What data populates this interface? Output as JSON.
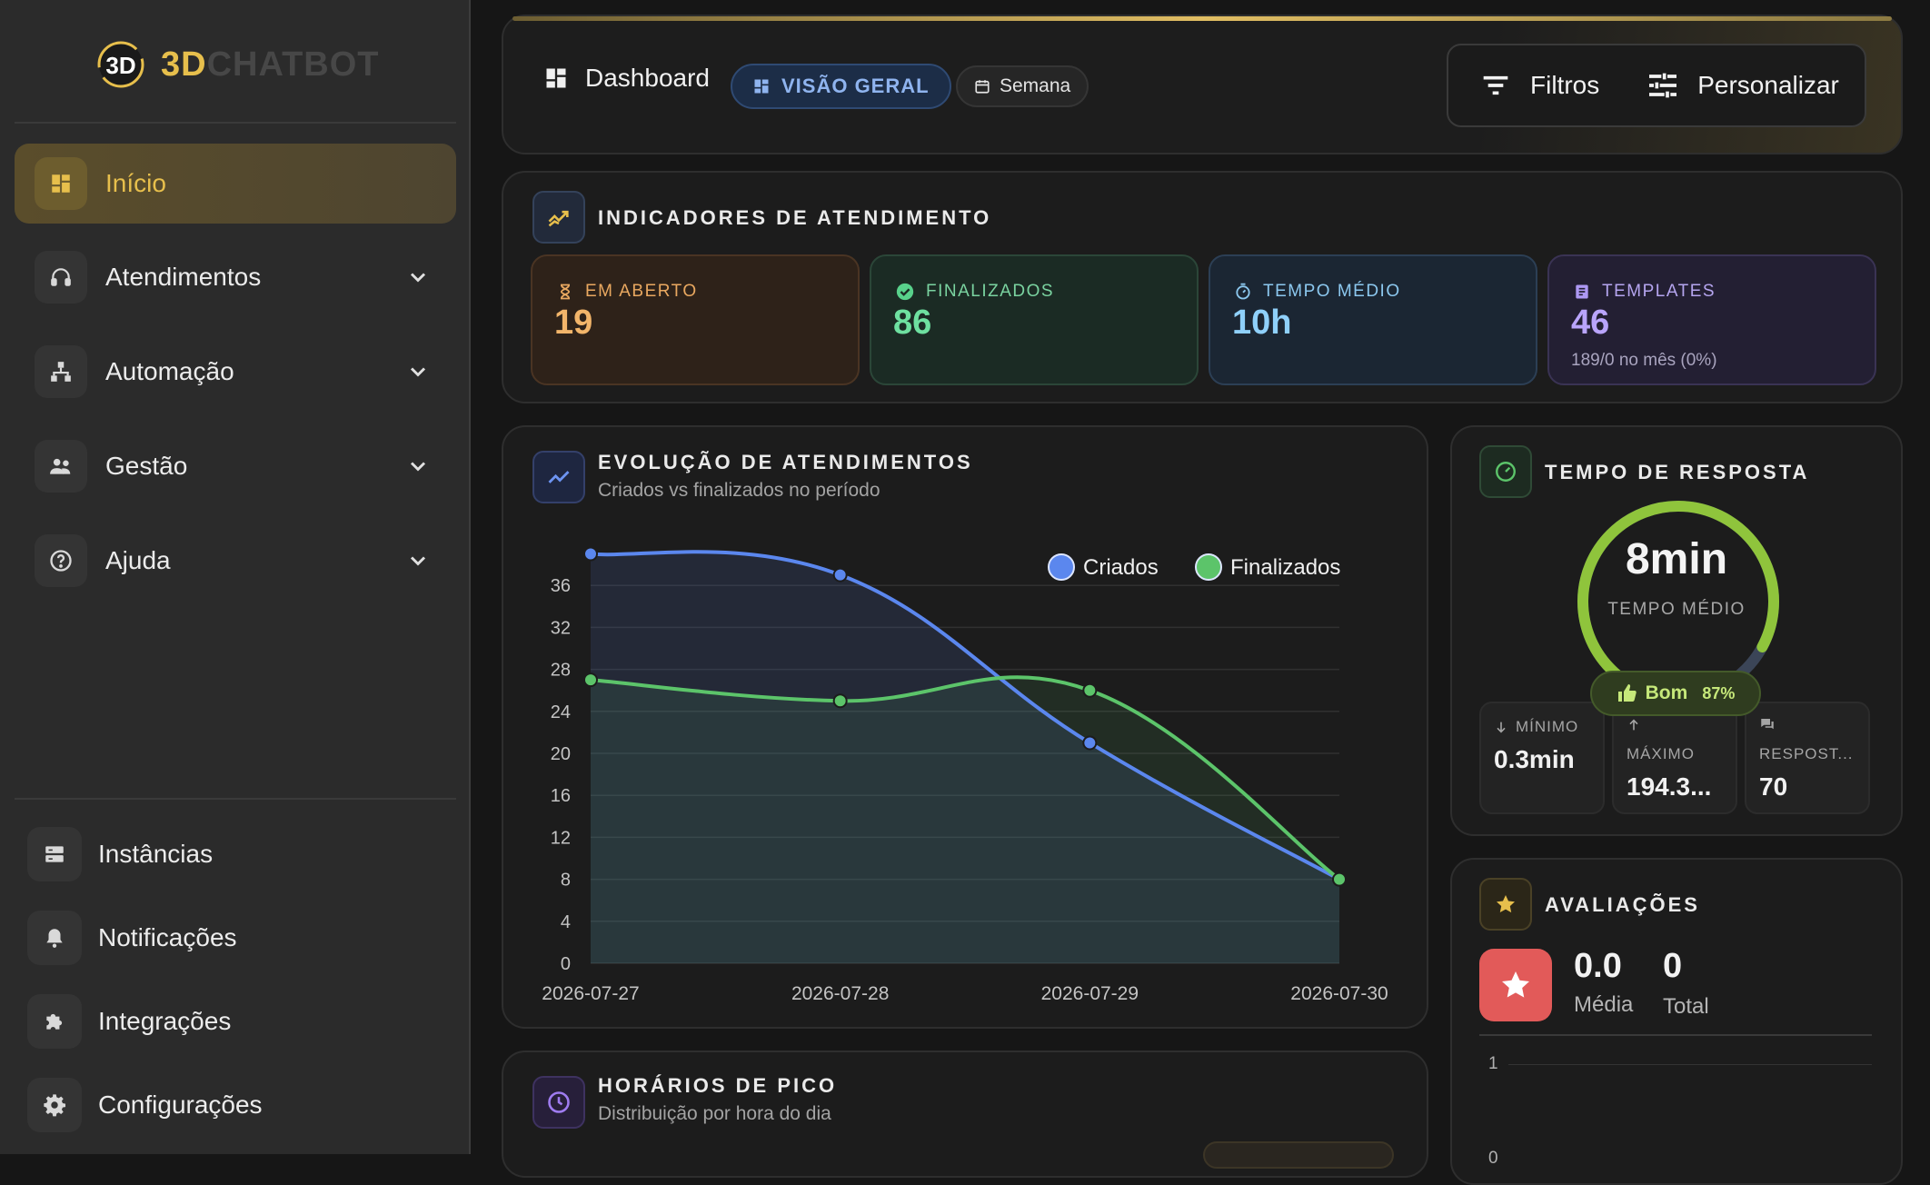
{
  "brand": {
    "logo_text": "3D",
    "name_part1": "3D",
    "name_part2": "CHATBOT"
  },
  "sidebar": {
    "items": [
      {
        "label": "Início",
        "icon": "dashboard-icon",
        "active": true
      },
      {
        "label": "Atendimentos",
        "icon": "headset-icon",
        "expandable": true
      },
      {
        "label": "Automação",
        "icon": "sitemap-icon",
        "expandable": true
      },
      {
        "label": "Gestão",
        "icon": "people-icon",
        "expandable": true
      },
      {
        "label": "Ajuda",
        "icon": "help-circle-icon",
        "expandable": true
      }
    ],
    "bottom_items": [
      {
        "label": "Instâncias",
        "icon": "server-icon"
      },
      {
        "label": "Notificações",
        "icon": "bell-icon"
      },
      {
        "label": "Integrações",
        "icon": "puzzle-icon"
      },
      {
        "label": "Configurações",
        "icon": "gear-icon"
      }
    ]
  },
  "header": {
    "title": "Dashboard",
    "view_pill": "VISÃO GERAL",
    "period_pill": "Semana",
    "filters_label": "Filtros",
    "customize_label": "Personalizar"
  },
  "indicators": {
    "title": "INDICADORES DE ATENDIMENTO",
    "stats": [
      {
        "label": "EM ABERTO",
        "value": "19",
        "icon": "hourglass-icon",
        "color": "#e9a860"
      },
      {
        "label": "FINALIZADOS",
        "value": "86",
        "icon": "check-circle-icon",
        "color": "#58d18b"
      },
      {
        "label": "TEMPO MÉDIO",
        "value": "10h",
        "icon": "timer-icon",
        "color": "#7cc3f2"
      },
      {
        "label": "TEMPLATES",
        "value": "46",
        "icon": "template-icon",
        "color": "#ad98f3",
        "sub": "189/0 no mês (0%)"
      }
    ]
  },
  "evolution": {
    "title": "EVOLUÇÃO DE ATENDIMENTOS",
    "subtitle": "Criados vs finalizados no período"
  },
  "chart_data": {
    "type": "line",
    "x": [
      "2026-07-27",
      "2026-07-28",
      "2026-07-29",
      "2026-07-30"
    ],
    "ylim": [
      0,
      40
    ],
    "yticks": [
      0,
      4,
      8,
      12,
      16,
      20,
      24,
      28,
      32,
      36
    ],
    "grid": true,
    "legend_position": "top-right",
    "series": [
      {
        "name": "Criados",
        "values": [
          39,
          37,
          21,
          8
        ],
        "color": "#5b87ee"
      },
      {
        "name": "Finalizados",
        "values": [
          27,
          25,
          26,
          8
        ],
        "color": "#5cc46a"
      }
    ]
  },
  "peak": {
    "title": "HORÁRIOS DE PICO",
    "subtitle": "Distribuição por hora do dia"
  },
  "response": {
    "title": "TEMPO DE RESPOSTA",
    "value": "8min",
    "value_label": "TEMPO MÉDIO",
    "gauge_fraction": 0.87,
    "badge_label": "Bom",
    "badge_percent": "87%",
    "min_label": "MÍNIMO",
    "min_value": "0.3min",
    "max_label": "MÁXIMO",
    "max_value": "194.3...",
    "resp_label": "RESPOST...",
    "resp_value": "70"
  },
  "ratings": {
    "title": "AVALIAÇÕES",
    "average": "0.0",
    "average_label": "Média",
    "total": "0",
    "total_label": "Total",
    "axis_tick": "1",
    "axis_tick_partial": "0"
  }
}
